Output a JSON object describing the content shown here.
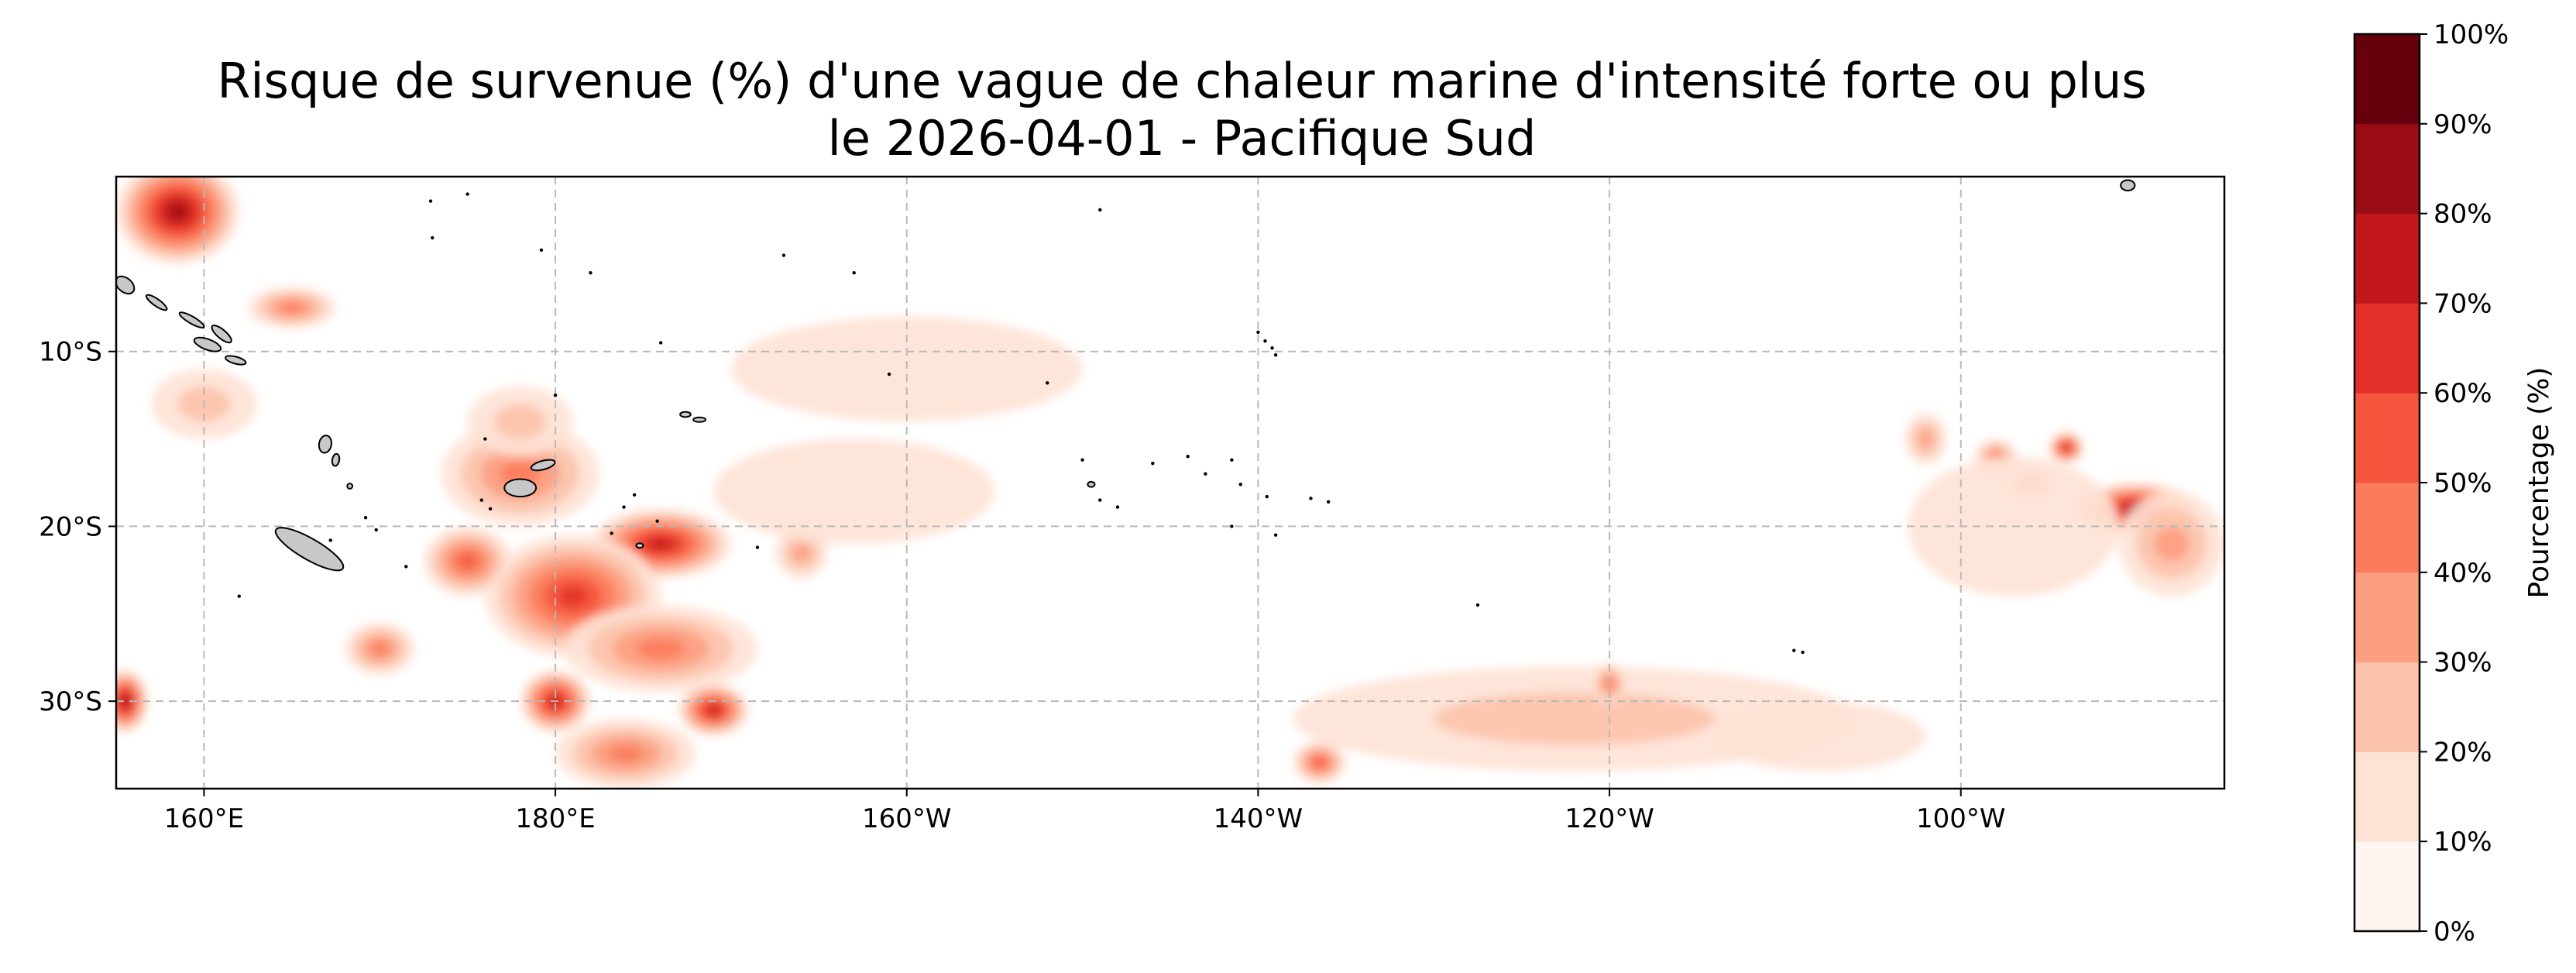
{
  "title": {
    "line1": "Risque de survenue (%) d'une vague de chaleur marine d'intensité forte ou plus",
    "line2": "le 2026-04-01 - Pacifique Sud"
  },
  "map": {
    "region": "Pacifique Sud",
    "date": "2026-04-01",
    "extent_deg": {
      "lon_min": 155,
      "lon_max": 275,
      "lat_min": -35,
      "lat_max": 0
    },
    "lon_ticks": [
      {
        "value": 160,
        "label": "160°E"
      },
      {
        "value": 180,
        "label": "180°E"
      },
      {
        "value": 200,
        "label": "160°W"
      },
      {
        "value": 220,
        "label": "140°W"
      },
      {
        "value": 240,
        "label": "120°W"
      },
      {
        "value": 260,
        "label": "100°W"
      }
    ],
    "lat_ticks": [
      {
        "value": -10,
        "label": "10°S"
      },
      {
        "value": -20,
        "label": "20°S"
      },
      {
        "value": -30,
        "label": "30°S"
      }
    ],
    "gridlines": true,
    "hotspots": [
      {
        "lon": 158.5,
        "lat": -2,
        "rx": 3.5,
        "ry": 3,
        "level": 80
      },
      {
        "lon": 165,
        "lat": -7.5,
        "rx": 2.5,
        "ry": 1.2,
        "level": 40
      },
      {
        "lon": 160,
        "lat": -13,
        "rx": 3,
        "ry": 2,
        "level": 20
      },
      {
        "lon": 178,
        "lat": -17,
        "rx": 4.5,
        "ry": 3,
        "level": 40
      },
      {
        "lon": 186,
        "lat": -21,
        "rx": 4,
        "ry": 2,
        "level": 70
      },
      {
        "lon": 181,
        "lat": -24,
        "rx": 5,
        "ry": 3.5,
        "level": 60
      },
      {
        "lon": 186,
        "lat": -27,
        "rx": 5.5,
        "ry": 2.5,
        "level": 40
      },
      {
        "lon": 175,
        "lat": -22,
        "rx": 2.5,
        "ry": 2,
        "level": 50
      },
      {
        "lon": 180,
        "lat": -30,
        "rx": 2,
        "ry": 1.8,
        "level": 70
      },
      {
        "lon": 189,
        "lat": -30.5,
        "rx": 2,
        "ry": 1.5,
        "level": 70
      },
      {
        "lon": 184,
        "lat": -33,
        "rx": 4,
        "ry": 2,
        "level": 40
      },
      {
        "lon": 155.5,
        "lat": -30,
        "rx": 1.3,
        "ry": 1.8,
        "level": 80
      },
      {
        "lon": 170,
        "lat": -27,
        "rx": 2,
        "ry": 1.5,
        "level": 40
      },
      {
        "lon": 178,
        "lat": -14,
        "rx": 3,
        "ry": 2,
        "level": 20
      },
      {
        "lon": 194,
        "lat": -21.5,
        "rx": 1.5,
        "ry": 1.5,
        "level": 30
      },
      {
        "lon": 200,
        "lat": -11,
        "rx": 10,
        "ry": 3,
        "level": 10
      },
      {
        "lon": 270,
        "lat": -19,
        "rx": 3.5,
        "ry": 1.5,
        "level": 80
      },
      {
        "lon": 272,
        "lat": -21,
        "rx": 3,
        "ry": 3,
        "level": 30
      },
      {
        "lon": 266,
        "lat": -15.5,
        "rx": 1,
        "ry": 0.9,
        "level": 70
      },
      {
        "lon": 262,
        "lat": -16,
        "rx": 1.2,
        "ry": 1,
        "level": 40
      },
      {
        "lon": 264,
        "lat": -17.5,
        "rx": 1.3,
        "ry": 0.9,
        "level": 40
      },
      {
        "lon": 263,
        "lat": -20,
        "rx": 6,
        "ry": 4,
        "level": 10
      },
      {
        "lon": 258,
        "lat": -15,
        "rx": 1.2,
        "ry": 1.5,
        "level": 30
      },
      {
        "lon": 238,
        "lat": -31,
        "rx": 16,
        "ry": 3,
        "level": 20
      },
      {
        "lon": 240,
        "lat": -29,
        "rx": 1,
        "ry": 1.2,
        "level": 40
      },
      {
        "lon": 223.5,
        "lat": -33.5,
        "rx": 1.5,
        "ry": 1.2,
        "level": 50
      },
      {
        "lon": 252,
        "lat": -32,
        "rx": 6,
        "ry": 2,
        "level": 10
      },
      {
        "lon": 197,
        "lat": -18,
        "rx": 8,
        "ry": 3,
        "level": 10
      }
    ],
    "land": [
      {
        "name": "island-new-caledonia",
        "lon": 166,
        "lat": -21.3,
        "rx": 2.2,
        "ry": 0.6,
        "rot": 30
      },
      {
        "name": "island-fiji-viti-levu",
        "lon": 178,
        "lat": -17.8,
        "rx": 0.9,
        "ry": 0.5,
        "rot": 0
      },
      {
        "name": "island-fiji-vanua-levu",
        "lon": 179.3,
        "lat": -16.5,
        "rx": 0.7,
        "ry": 0.25,
        "rot": -15
      },
      {
        "name": "island-solomon-guadalcanal",
        "lon": 160.2,
        "lat": -9.6,
        "rx": 0.8,
        "ry": 0.3,
        "rot": 20
      },
      {
        "name": "island-solomon-malaita",
        "lon": 161,
        "lat": -9,
        "rx": 0.7,
        "ry": 0.25,
        "rot": 40
      },
      {
        "name": "island-solomon-makira",
        "lon": 161.8,
        "lat": -10.5,
        "rx": 0.6,
        "ry": 0.2,
        "rot": 15
      },
      {
        "name": "island-solomon-isabel",
        "lon": 159.3,
        "lat": -8.2,
        "rx": 0.8,
        "ry": 0.2,
        "rot": 30
      },
      {
        "name": "island-solomon-choiseul",
        "lon": 157.3,
        "lat": -7.2,
        "rx": 0.7,
        "ry": 0.2,
        "rot": 35
      },
      {
        "name": "island-bougainville",
        "lon": 155.5,
        "lat": -6.2,
        "rx": 0.6,
        "ry": 0.4,
        "rot": 40
      },
      {
        "name": "island-vanuatu-espiritu-santo",
        "lon": 166.9,
        "lat": -15.3,
        "rx": 0.35,
        "ry": 0.5,
        "rot": 10
      },
      {
        "name": "island-vanuatu-malakula",
        "lon": 167.5,
        "lat": -16.2,
        "rx": 0.2,
        "ry": 0.35,
        "rot": 10
      },
      {
        "name": "island-vanuatu-efate",
        "lon": 168.3,
        "lat": -17.7,
        "rx": 0.15,
        "ry": 0.15,
        "rot": 0
      },
      {
        "name": "island-galapagos",
        "lon": 269.5,
        "lat": -0.5,
        "rx": 0.4,
        "ry": 0.3,
        "rot": 0
      },
      {
        "name": "island-tahiti",
        "lon": 210.5,
        "lat": -17.6,
        "rx": 0.2,
        "ry": 0.15,
        "rot": 0
      },
      {
        "name": "island-samoa-upolu",
        "lon": 188.2,
        "lat": -13.9,
        "rx": 0.35,
        "ry": 0.12,
        "rot": 0
      },
      {
        "name": "island-samoa-savaii",
        "lon": 187.4,
        "lat": -13.6,
        "rx": 0.3,
        "ry": 0.15,
        "rot": 0
      },
      {
        "name": "island-tonga-tongatapu",
        "lon": 184.8,
        "lat": -21.1,
        "rx": 0.2,
        "ry": 0.1,
        "rot": 0
      }
    ],
    "atolls": [
      [
        175,
        -1
      ],
      [
        172.9,
        -1.4
      ],
      [
        173,
        -3.5
      ],
      [
        179.2,
        -4.2
      ],
      [
        182,
        -5.5
      ],
      [
        186,
        -9.5
      ],
      [
        193,
        -4.5
      ],
      [
        197,
        -5.5
      ],
      [
        199,
        -11.3
      ],
      [
        208,
        -11.8
      ],
      [
        211,
        -1.9
      ],
      [
        220,
        -8.9
      ],
      [
        220.4,
        -9.4
      ],
      [
        220.8,
        -9.8
      ],
      [
        221,
        -10.2
      ],
      [
        216,
        -16
      ],
      [
        214,
        -16.4
      ],
      [
        217,
        -17
      ],
      [
        218.5,
        -16.2
      ],
      [
        210,
        -16.2
      ],
      [
        211,
        -18.5
      ],
      [
        212,
        -18.9
      ],
      [
        219,
        -17.6
      ],
      [
        220.5,
        -18.3
      ],
      [
        223,
        -18.4
      ],
      [
        224,
        -18.6
      ],
      [
        218.5,
        -20
      ],
      [
        221,
        -20.5
      ],
      [
        232.5,
        -24.5
      ],
      [
        250.5,
        -27.1
      ],
      [
        251,
        -27.2
      ],
      [
        183.9,
        -18.9
      ],
      [
        185.8,
        -19.7
      ],
      [
        184.5,
        -18.2
      ],
      [
        183.2,
        -20.4
      ],
      [
        191.5,
        -21.2
      ],
      [
        175.8,
        -18.5
      ],
      [
        176.3,
        -19
      ],
      [
        169.2,
        -19.5
      ],
      [
        169.8,
        -20.2
      ],
      [
        167.2,
        -20.8
      ],
      [
        171.5,
        -22.3
      ],
      [
        162,
        -24
      ],
      [
        176,
        -15
      ],
      [
        180,
        -12.5
      ]
    ]
  },
  "colorbar": {
    "label": "Pourcentage (%)",
    "min": 0,
    "max": 100,
    "step": 10,
    "tick_labels": [
      "0%",
      "10%",
      "20%",
      "30%",
      "40%",
      "50%",
      "60%",
      "70%",
      "80%",
      "90%",
      "100%"
    ],
    "colors": [
      "#fff5f0",
      "#fee2d5",
      "#fcc3ab",
      "#fc9f81",
      "#fb7c5c",
      "#f5553d",
      "#e23028",
      "#c2181c",
      "#9b0d14",
      "#67000d"
    ]
  }
}
